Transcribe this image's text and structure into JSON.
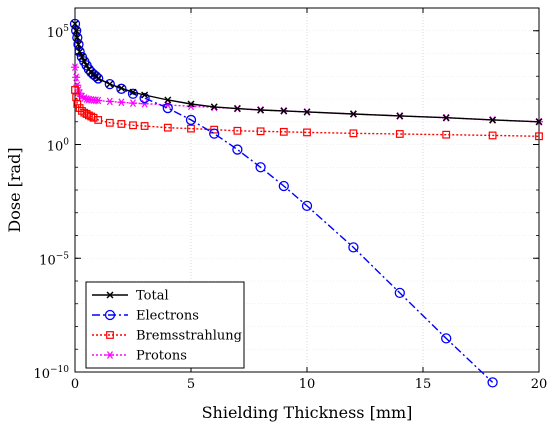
{
  "chart_data": {
    "type": "line",
    "xlabel": "Shielding Thickness [mm]",
    "ylabel": "Dose [rad]",
    "xlim": [
      0,
      20
    ],
    "ylim_log10": [
      -10,
      6
    ],
    "yscale": "log",
    "grid": true,
    "legend_position": "bottom-left",
    "x_ticks": [
      0,
      5,
      10,
      15,
      20
    ],
    "y_ticks": [
      {
        "exp": 5,
        "base": "10",
        "sup": "5"
      },
      {
        "exp": 0,
        "base": "10",
        "sup": "0"
      },
      {
        "exp": -5,
        "base": "10",
        "sup": "−5"
      },
      {
        "exp": -10,
        "base": "10",
        "sup": "−10"
      }
    ],
    "series": [
      {
        "name": "Total",
        "color": "#000000",
        "dash": "solid",
        "marker": "x",
        "x": [
          0,
          0.05,
          0.1,
          0.15,
          0.2,
          0.3,
          0.4,
          0.5,
          0.6,
          0.7,
          0.8,
          0.9,
          1,
          1.5,
          2,
          2.5,
          3,
          4,
          5,
          6,
          7,
          8,
          9,
          10,
          12,
          14,
          16,
          18,
          20
        ],
        "y": [
          200000,
          100000,
          50000,
          25000,
          12000,
          7000,
          4500,
          3000,
          2000,
          1500,
          1200,
          1000,
          800,
          450,
          300,
          200,
          150,
          90,
          60,
          45,
          38,
          33,
          30,
          27,
          22,
          18,
          15,
          12,
          10
        ]
      },
      {
        "name": "Electrons",
        "color": "#0000ff",
        "dash": "dashdot",
        "marker": "circle",
        "x": [
          0,
          0.05,
          0.1,
          0.15,
          0.2,
          0.3,
          0.4,
          0.5,
          0.6,
          0.7,
          0.8,
          0.9,
          1,
          1.5,
          2,
          2.5,
          3,
          4,
          5,
          6,
          7,
          8,
          9,
          10,
          12,
          14,
          16,
          18
        ],
        "y": [
          200000,
          100000,
          50000,
          25000,
          12000,
          7000,
          4500,
          3000,
          2000,
          1500,
          1200,
          1000,
          800,
          450,
          280,
          170,
          110,
          40,
          12,
          3,
          0.6,
          0.1,
          0.015,
          0.002,
          3e-05,
          3e-07,
          3e-09,
          3.5e-11
        ]
      },
      {
        "name": "Bremsstrahlung",
        "color": "#ff0000",
        "dash": "dotted",
        "marker": "square",
        "x": [
          0,
          0.05,
          0.1,
          0.2,
          0.3,
          0.4,
          0.5,
          0.6,
          0.7,
          0.8,
          1,
          1.5,
          2,
          2.5,
          3,
          4,
          5,
          6,
          7,
          8,
          9,
          10,
          12,
          14,
          16,
          18,
          20
        ],
        "y": [
          250,
          120,
          60,
          40,
          30,
          25,
          22,
          19,
          17,
          15,
          12,
          9,
          8,
          7,
          6.5,
          5.5,
          5,
          4.5,
          4,
          3.8,
          3.6,
          3.4,
          3.1,
          2.9,
          2.7,
          2.5,
          2.3
        ]
      },
      {
        "name": "Protons",
        "color": "#ff00ff",
        "dash": "dotted",
        "marker": "asterisk",
        "x": [
          0,
          0.05,
          0.1,
          0.15,
          0.2,
          0.3,
          0.4,
          0.5,
          0.6,
          0.7,
          0.8,
          0.9,
          1,
          1.5,
          2,
          2.5,
          3,
          4,
          5,
          6,
          7,
          8,
          9,
          10,
          12,
          14,
          16,
          18,
          20
        ],
        "y": [
          2500,
          900,
          400,
          250,
          180,
          130,
          110,
          100,
          95,
          92,
          90,
          88,
          86,
          78,
          72,
          66,
          62,
          55,
          48,
          43,
          38,
          33,
          30,
          27,
          22,
          18,
          15,
          12,
          10
        ]
      }
    ]
  }
}
